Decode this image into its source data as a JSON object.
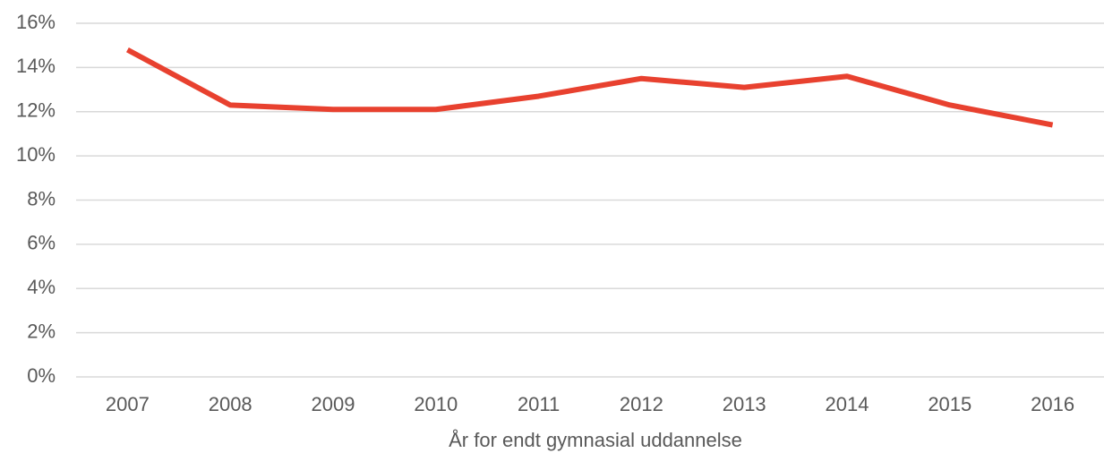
{
  "chart_data": {
    "type": "line",
    "x_label": "År for endt gymnasial uddannelse",
    "categories": [
      "2007",
      "2008",
      "2009",
      "2010",
      "2011",
      "2012",
      "2013",
      "2014",
      "2015",
      "2016"
    ],
    "series": [
      {
        "color": "#e8412f",
        "values": [
          14.8,
          12.3,
          12.1,
          12.1,
          12.7,
          13.5,
          13.1,
          13.6,
          12.3,
          11.4
        ]
      }
    ],
    "ylim": [
      0,
      16
    ],
    "yticks": [
      {
        "value": 0,
        "label": "0%"
      },
      {
        "value": 2,
        "label": "2%"
      },
      {
        "value": 4,
        "label": "4%"
      },
      {
        "value": 6,
        "label": "6%"
      },
      {
        "value": 8,
        "label": "8%"
      },
      {
        "value": 10,
        "label": "10%"
      },
      {
        "value": 12,
        "label": "12%"
      },
      {
        "value": 14,
        "label": "14%"
      },
      {
        "value": 16,
        "label": "16%"
      }
    ],
    "grid": true
  }
}
